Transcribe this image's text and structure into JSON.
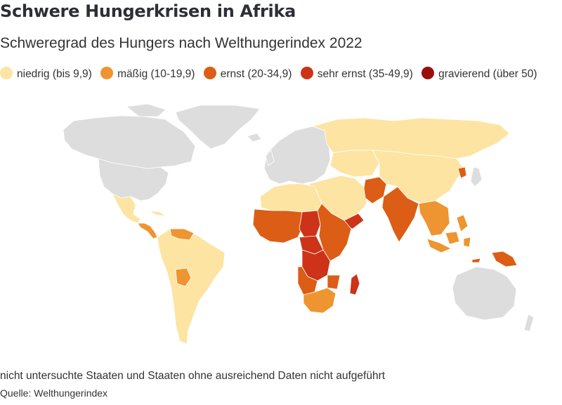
{
  "title": "Schwere Hungerkrisen in Afrika",
  "subtitle": "Schweregrad des Hungers nach Welthungerindex 2022",
  "legend": [
    {
      "label": "niedrig (bis 9,9)",
      "color": "#fde4a2"
    },
    {
      "label": "mäßig (10-19,9)",
      "color": "#ee9430"
    },
    {
      "label": "ernst (20-34,9)",
      "color": "#dc5d15"
    },
    {
      "label": "sehr ernst (35-49,9)",
      "color": "#cc3318"
    },
    {
      "label": "gravierend (über 50)",
      "color": "#9a0d0d"
    }
  ],
  "no_data_color": "#dddddd",
  "map_regions": [
    {
      "name": "Grönland",
      "category": "keine Daten"
    },
    {
      "name": "Kanada",
      "category": "keine Daten"
    },
    {
      "name": "USA",
      "category": "keine Daten"
    },
    {
      "name": "Mexiko",
      "category": "niedrig"
    },
    {
      "name": "Mittelamerika",
      "category": "mäßig"
    },
    {
      "name": "Südamerika",
      "category": "niedrig"
    },
    {
      "name": "Venezuela",
      "category": "mäßig"
    },
    {
      "name": "Bolivien",
      "category": "mäßig"
    },
    {
      "name": "Europa",
      "category": "keine Daten"
    },
    {
      "name": "Russland",
      "category": "niedrig"
    },
    {
      "name": "China",
      "category": "niedrig"
    },
    {
      "name": "Mongolei",
      "category": "niedrig"
    },
    {
      "name": "Zentralasien",
      "category": "niedrig"
    },
    {
      "name": "Naher Osten",
      "category": "niedrig"
    },
    {
      "name": "Jemen",
      "category": "sehr ernst"
    },
    {
      "name": "Afghanistan",
      "category": "ernst"
    },
    {
      "name": "Indien",
      "category": "ernst"
    },
    {
      "name": "Südostasien",
      "category": "mäßig"
    },
    {
      "name": "Nordkorea",
      "category": "ernst"
    },
    {
      "name": "Indonesien",
      "category": "mäßig"
    },
    {
      "name": "Papua-Neuguinea",
      "category": "ernst"
    },
    {
      "name": "Timor-Leste",
      "category": "ernst"
    },
    {
      "name": "Nordafrika",
      "category": "niedrig"
    },
    {
      "name": "Westafrika",
      "category": "ernst"
    },
    {
      "name": "Tschad",
      "category": "sehr ernst"
    },
    {
      "name": "Zentralafrikanische Republik",
      "category": "sehr ernst"
    },
    {
      "name": "DR Kongo",
      "category": "sehr ernst"
    },
    {
      "name": "Ostafrika",
      "category": "ernst"
    },
    {
      "name": "Angola",
      "category": "ernst"
    },
    {
      "name": "Südafrika",
      "category": "mäßig"
    },
    {
      "name": "Madagaskar",
      "category": "sehr ernst"
    },
    {
      "name": "Australien",
      "category": "keine Daten"
    },
    {
      "name": "Japan",
      "category": "keine Daten"
    },
    {
      "name": "Neuseeland",
      "category": "keine Daten"
    }
  ],
  "note": "nicht untersuchte Staaten und Staaten ohne ausreichend Daten nicht aufgeführt",
  "source": "Quelle: Welthungerindex"
}
